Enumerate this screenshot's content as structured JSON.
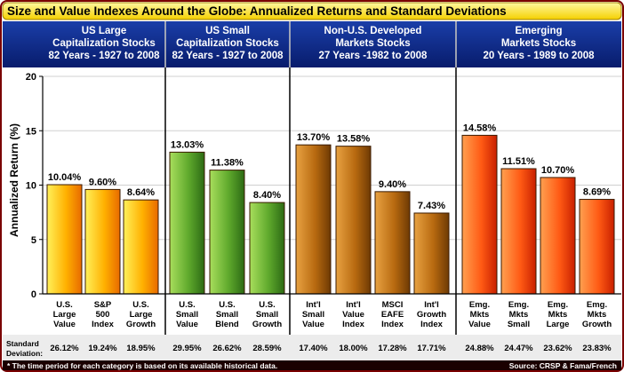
{
  "chart_data": {
    "type": "bar",
    "title": "Size and Value Indexes Around the Globe: Annualized Returns and Standard Deviations",
    "ylabel": "Annualized Return (%)",
    "ylim": [
      0,
      20
    ],
    "yticks": [
      "0",
      "5",
      "10",
      "15",
      "20"
    ],
    "std_label_lines": [
      "Standard",
      "Deviation:"
    ],
    "footnote": "* The time period for each category is based on its available historical data.",
    "source": "Source:  CRSP & Fama/French",
    "groups": [
      {
        "header": [
          "US Large",
          "Capitalization Stocks",
          "82 Years - 1927 to 2008"
        ],
        "colors": [
          "#fff15a",
          "#ffb000",
          "#e86a00"
        ],
        "bars": [
          {
            "label": [
              "U.S.",
              "Large",
              "Value"
            ],
            "value": 10.04,
            "value_label": "10.04%",
            "std": "26.12%"
          },
          {
            "label": [
              "S&P",
              "500",
              "Index"
            ],
            "value": 9.6,
            "value_label": "9.60%",
            "std": "19.24%"
          },
          {
            "label": [
              "U.S.",
              "Large",
              "Growth"
            ],
            "value": 8.64,
            "value_label": "8.64%",
            "std": "18.95%"
          }
        ]
      },
      {
        "header": [
          "US Small",
          "Capitalization Stocks",
          "82 Years - 1927 to 2008"
        ],
        "colors": [
          "#a8de5c",
          "#5ea82c",
          "#2c6a14"
        ],
        "bars": [
          {
            "label": [
              "U.S.",
              "Small",
              "Value"
            ],
            "value": 13.03,
            "value_label": "13.03%",
            "std": "29.95%"
          },
          {
            "label": [
              "U.S.",
              "Small",
              "Blend"
            ],
            "value": 11.38,
            "value_label": "11.38%",
            "std": "26.62%"
          },
          {
            "label": [
              "U.S.",
              "Small",
              "Growth"
            ],
            "value": 8.4,
            "value_label": "8.40%",
            "std": "28.59%"
          }
        ]
      },
      {
        "header": [
          "Non-U.S. Developed",
          "Markets Stocks",
          "27 Years -1982 to 2008"
        ],
        "colors": [
          "#e8a242",
          "#b86a10",
          "#6e3a04"
        ],
        "bars": [
          {
            "label": [
              "Int'l",
              "Small",
              "Value"
            ],
            "value": 13.7,
            "value_label": "13.70%",
            "std": "17.40%"
          },
          {
            "label": [
              "Int'l",
              "Value",
              "Index"
            ],
            "value": 13.58,
            "value_label": "13.58%",
            "std": "18.00%"
          },
          {
            "label": [
              "MSCI",
              "EAFE",
              "Index"
            ],
            "value": 9.4,
            "value_label": "9.40%",
            "std": "17.28%"
          },
          {
            "label": [
              "Int'l",
              "Growth",
              "Index"
            ],
            "value": 7.43,
            "value_label": "7.43%",
            "std": "17.71%"
          }
        ]
      },
      {
        "header": [
          "Emerging",
          "Markets Stocks",
          "20 Years - 1989 to 2008"
        ],
        "colors": [
          "#ffa050",
          "#ff5a14",
          "#c82000"
        ],
        "bars": [
          {
            "label": [
              "Emg.",
              "Mkts",
              "Value"
            ],
            "value": 14.58,
            "value_label": "14.58%",
            "std": "24.88%"
          },
          {
            "label": [
              "Emg.",
              "Mkts",
              "Small"
            ],
            "value": 11.51,
            "value_label": "11.51%",
            "std": "24.47%"
          },
          {
            "label": [
              "Emg.",
              "Mkts",
              "Large"
            ],
            "value": 10.7,
            "value_label": "10.70%",
            "std": "23.62%"
          },
          {
            "label": [
              "Emg.",
              "Mkts",
              "Growth"
            ],
            "value": 8.69,
            "value_label": "8.69%",
            "std": "23.83%"
          }
        ]
      }
    ]
  }
}
